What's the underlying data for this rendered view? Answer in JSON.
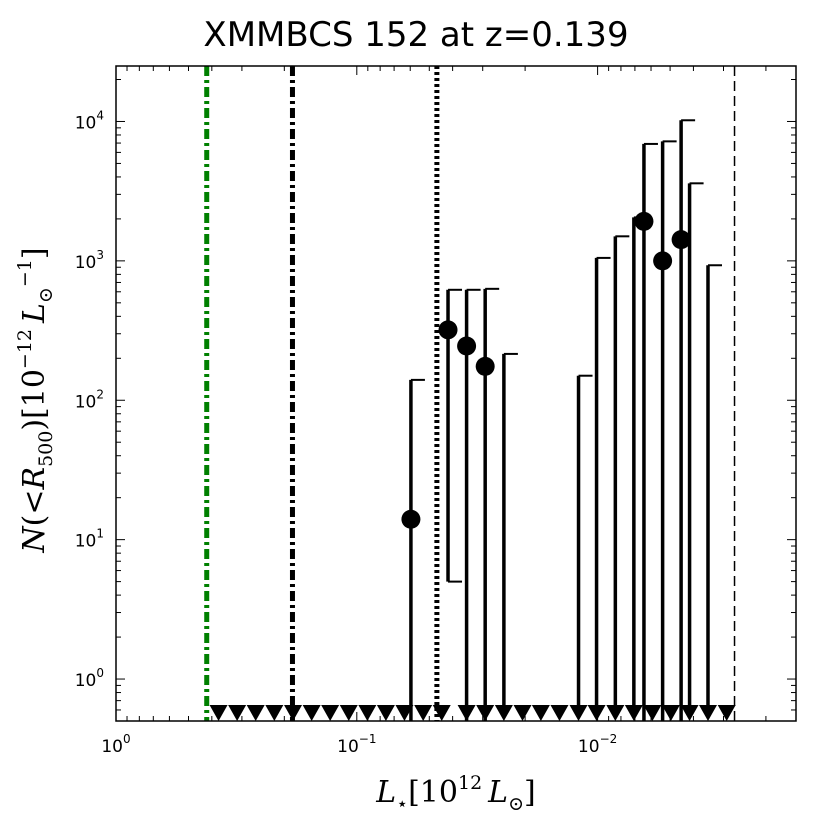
{
  "chart_data": {
    "type": "scatter",
    "title": "XMMBCS 152 at z=0.139",
    "xlabel": "L_⋆[10^12 L_⊙]",
    "ylabel": "N(<R_500)[10^-12 L_⊙^-1]",
    "x_scale": "log",
    "x_reversed": true,
    "y_scale": "log",
    "xlim": [
      1.0,
      0.0015
    ],
    "ylim": [
      0.5,
      25000
    ],
    "x_ticks": [
      {
        "value": 1.0,
        "label": "10^0"
      },
      {
        "value": 0.1,
        "label": "10^-1"
      },
      {
        "value": 0.01,
        "label": "10^-2"
      }
    ],
    "y_ticks": [
      {
        "value": 1,
        "label": "10^0"
      },
      {
        "value": 10,
        "label": "10^1"
      },
      {
        "value": 100,
        "label": "10^2"
      },
      {
        "value": 1000,
        "label": "10^3"
      },
      {
        "value": 10000,
        "label": "10^4"
      }
    ],
    "detections": [
      {
        "x": 0.0596,
        "y": 14,
        "err_low": 0.5,
        "err_high": 140
      },
      {
        "x": 0.0418,
        "y": 320,
        "err_low": 5,
        "err_high": 620
      },
      {
        "x": 0.035,
        "y": 245,
        "err_low": 0.5,
        "err_high": 620
      },
      {
        "x": 0.0293,
        "y": 175,
        "err_low": 0.5,
        "err_high": 630
      },
      {
        "x": 0.00642,
        "y": 1920,
        "err_low": 0.5,
        "err_high": 6900
      },
      {
        "x": 0.00537,
        "y": 1000,
        "err_low": 0.5,
        "err_high": 7200
      },
      {
        "x": 0.0045,
        "y": 1420,
        "err_low": 0.5,
        "err_high": 10200
      }
    ],
    "upper_limits": [
      {
        "x": 0.375,
        "y_limit": null
      },
      {
        "x": 0.314,
        "y_limit": null
      },
      {
        "x": 0.263,
        "y_limit": null
      },
      {
        "x": 0.22,
        "y_limit": null
      },
      {
        "x": 0.184,
        "y_limit": null
      },
      {
        "x": 0.154,
        "y_limit": null
      },
      {
        "x": 0.129,
        "y_limit": null
      },
      {
        "x": 0.108,
        "y_limit": null
      },
      {
        "x": 0.0904,
        "y_limit": null
      },
      {
        "x": 0.0757,
        "y_limit": null
      },
      {
        "x": 0.0634,
        "y_limit": null
      },
      {
        "x": 0.053,
        "y_limit": null
      },
      {
        "x": 0.0444,
        "y_limit": null
      },
      {
        "x": 0.035,
        "y_limit": null
      },
      {
        "x": 0.0293,
        "y_limit": null
      },
      {
        "x": 0.0245,
        "y_limit": 215
      },
      {
        "x": 0.0205,
        "y_limit": null
      },
      {
        "x": 0.0172,
        "y_limit": null
      },
      {
        "x": 0.0144,
        "y_limit": null
      },
      {
        "x": 0.012,
        "y_limit": 150
      },
      {
        "x": 0.0101,
        "y_limit": 1050
      },
      {
        "x": 0.00844,
        "y_limit": 1500
      },
      {
        "x": 0.00707,
        "y_limit": 2050
      },
      {
        "x": 0.00592,
        "y_limit": null
      },
      {
        "x": 0.00496,
        "y_limit": null
      },
      {
        "x": 0.00415,
        "y_limit": 3600
      },
      {
        "x": 0.00348,
        "y_limit": 930
      },
      {
        "x": 0.00291,
        "y_limit": null
      }
    ],
    "vertical_lines": [
      {
        "x": 0.42,
        "style": "dash-dot",
        "color": "#008000",
        "width": "thick"
      },
      {
        "x": 0.185,
        "style": "dash-dot",
        "color": "#000000",
        "width": "thick"
      },
      {
        "x": 0.0465,
        "style": "dotted",
        "color": "#000000",
        "width": "thick"
      },
      {
        "x": 0.0027,
        "style": "dashed",
        "color": "#000000",
        "width": "thin"
      }
    ],
    "grid": false,
    "legend": "none"
  }
}
